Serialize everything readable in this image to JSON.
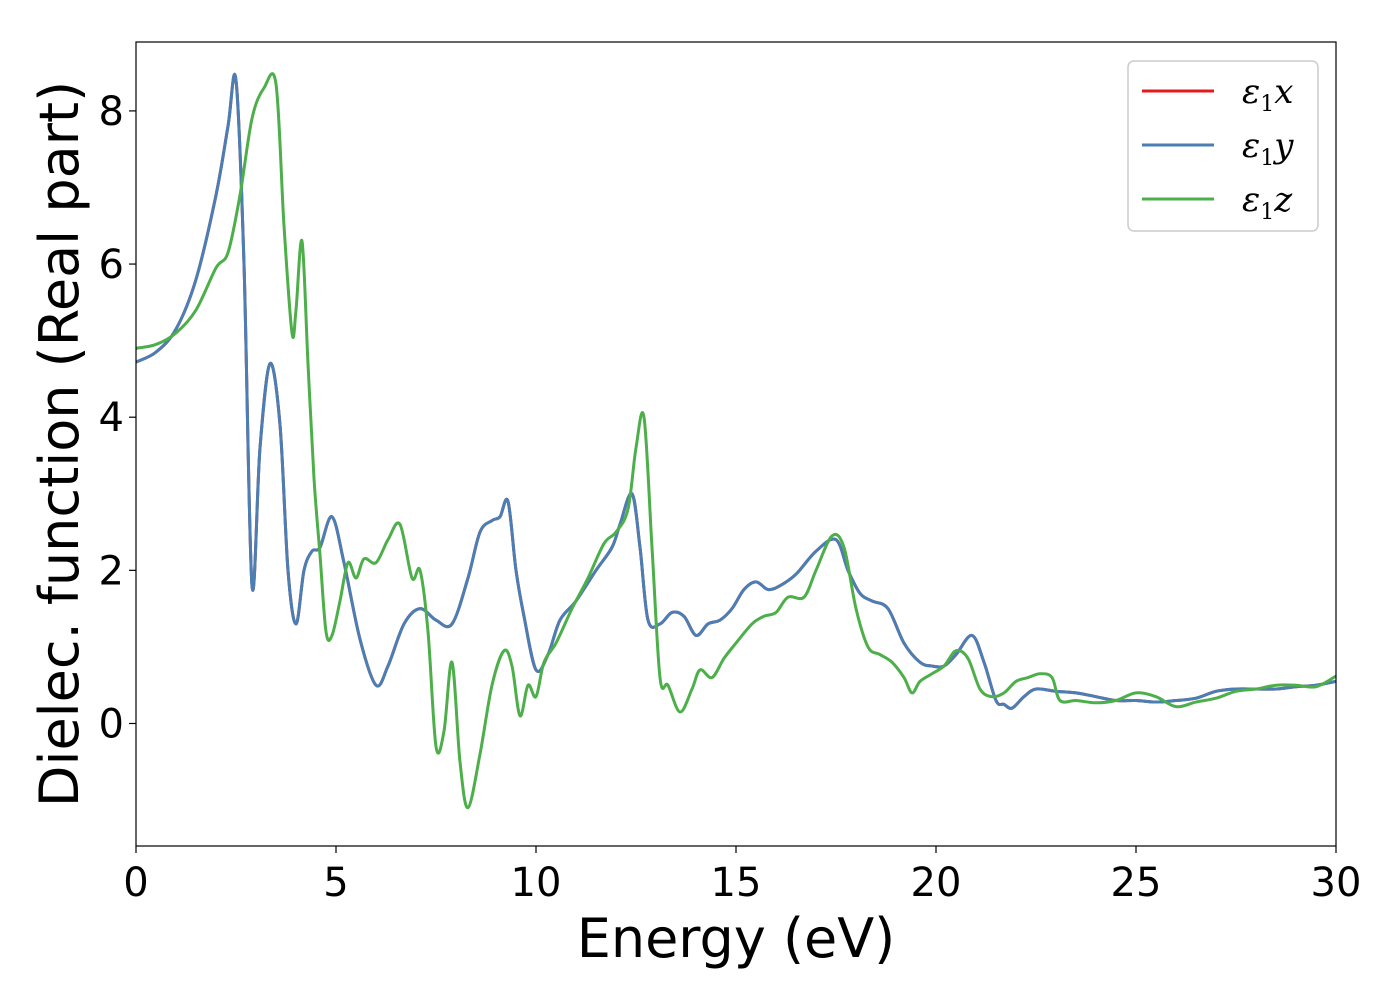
{
  "chart_data": {
    "type": "line",
    "xlabel": "Energy (eV)",
    "ylabel": "Dielec. function (Real part)",
    "xlim": [
      0,
      30
    ],
    "ylim": [
      -1.6,
      8.9
    ],
    "xticks": [
      0,
      5,
      10,
      15,
      20,
      25,
      30
    ],
    "yticks": [
      0,
      2,
      4,
      6,
      8
    ],
    "legend_position": "upper-right",
    "grid": false,
    "series": [
      {
        "name": "ε1x",
        "legend": {
          "base": "ε",
          "sub": "1",
          "suffix": "x"
        },
        "color": "#e41a1c",
        "x": [
          0,
          0.5,
          1,
          1.5,
          2,
          2.3,
          2.5,
          2.7,
          2.9,
          3.1,
          3.35,
          3.6,
          3.8,
          4.0,
          4.2,
          4.4,
          4.6,
          4.9,
          5.2,
          5.6,
          6.0,
          6.3,
          6.7,
          7.1,
          7.5,
          7.9,
          8.3,
          8.6,
          8.9,
          9.1,
          9.3,
          9.5,
          9.7,
          10.0,
          10.3,
          10.6,
          11.0,
          11.5,
          11.9,
          12.1,
          12.4,
          12.6,
          12.8,
          13.1,
          13.4,
          13.7,
          14.0,
          14.3,
          14.6,
          14.9,
          15.2,
          15.5,
          15.8,
          16.1,
          16.5,
          17.0,
          17.5,
          17.8,
          18.1,
          18.4,
          18.8,
          19.2,
          19.6,
          19.9,
          20.2,
          20.5,
          20.9,
          21.2,
          21.5,
          21.7,
          21.9,
          22.2,
          22.5,
          23.0,
          23.5,
          24.0,
          24.5,
          25.0,
          25.5,
          26.0,
          26.5,
          27.0,
          27.5,
          28.0,
          28.5,
          29.0,
          29.5,
          30.0
        ],
        "y": [
          4.72,
          4.85,
          5.15,
          5.8,
          6.9,
          7.8,
          8.4,
          6.0,
          1.8,
          3.6,
          4.7,
          3.9,
          2.0,
          1.3,
          2.0,
          2.25,
          2.3,
          2.7,
          2.1,
          1.1,
          0.5,
          0.75,
          1.3,
          1.5,
          1.35,
          1.3,
          1.9,
          2.5,
          2.65,
          2.7,
          2.9,
          2.0,
          1.4,
          0.7,
          0.9,
          1.35,
          1.6,
          2.0,
          2.3,
          2.6,
          3.0,
          2.3,
          1.35,
          1.3,
          1.45,
          1.4,
          1.15,
          1.3,
          1.35,
          1.5,
          1.75,
          1.85,
          1.75,
          1.8,
          1.95,
          2.25,
          2.4,
          2.0,
          1.7,
          1.6,
          1.5,
          1.05,
          0.8,
          0.75,
          0.75,
          0.9,
          1.15,
          0.8,
          0.3,
          0.25,
          0.2,
          0.35,
          0.45,
          0.42,
          0.4,
          0.35,
          0.3,
          0.3,
          0.28,
          0.3,
          0.33,
          0.42,
          0.45,
          0.45,
          0.45,
          0.48,
          0.5,
          0.55
        ]
      },
      {
        "name": "ε1y",
        "legend": {
          "base": "ε",
          "sub": "1",
          "suffix": "y"
        },
        "color": "#4a7fb5",
        "x": [
          0,
          0.5,
          1,
          1.5,
          2,
          2.3,
          2.5,
          2.7,
          2.9,
          3.1,
          3.35,
          3.6,
          3.8,
          4.0,
          4.2,
          4.4,
          4.6,
          4.9,
          5.2,
          5.6,
          6.0,
          6.3,
          6.7,
          7.1,
          7.5,
          7.9,
          8.3,
          8.6,
          8.9,
          9.1,
          9.3,
          9.5,
          9.7,
          10.0,
          10.3,
          10.6,
          11.0,
          11.5,
          11.9,
          12.1,
          12.4,
          12.6,
          12.8,
          13.1,
          13.4,
          13.7,
          14.0,
          14.3,
          14.6,
          14.9,
          15.2,
          15.5,
          15.8,
          16.1,
          16.5,
          17.0,
          17.5,
          17.8,
          18.1,
          18.4,
          18.8,
          19.2,
          19.6,
          19.9,
          20.2,
          20.5,
          20.9,
          21.2,
          21.5,
          21.7,
          21.9,
          22.2,
          22.5,
          23.0,
          23.5,
          24.0,
          24.5,
          25.0,
          25.5,
          26.0,
          26.5,
          27.0,
          27.5,
          28.0,
          28.5,
          29.0,
          29.5,
          30.0
        ],
        "y": [
          4.72,
          4.85,
          5.15,
          5.8,
          6.9,
          7.8,
          8.4,
          6.0,
          1.8,
          3.6,
          4.7,
          3.9,
          2.0,
          1.3,
          2.0,
          2.25,
          2.3,
          2.7,
          2.1,
          1.1,
          0.5,
          0.75,
          1.3,
          1.5,
          1.35,
          1.3,
          1.9,
          2.5,
          2.65,
          2.7,
          2.9,
          2.0,
          1.4,
          0.7,
          0.9,
          1.35,
          1.6,
          2.0,
          2.3,
          2.6,
          3.0,
          2.3,
          1.35,
          1.3,
          1.45,
          1.4,
          1.15,
          1.3,
          1.35,
          1.5,
          1.75,
          1.85,
          1.75,
          1.8,
          1.95,
          2.25,
          2.4,
          2.0,
          1.7,
          1.6,
          1.5,
          1.05,
          0.8,
          0.75,
          0.75,
          0.9,
          1.15,
          0.8,
          0.3,
          0.25,
          0.2,
          0.35,
          0.45,
          0.42,
          0.4,
          0.35,
          0.3,
          0.3,
          0.28,
          0.3,
          0.33,
          0.42,
          0.45,
          0.45,
          0.45,
          0.48,
          0.5,
          0.55
        ]
      },
      {
        "name": "ε1z",
        "legend": {
          "base": "ε",
          "sub": "1",
          "suffix": "z"
        },
        "color": "#4daf4a",
        "x": [
          0,
          0.5,
          1,
          1.5,
          2,
          2.3,
          2.6,
          2.9,
          3.2,
          3.5,
          3.7,
          3.9,
          4.0,
          4.15,
          4.3,
          4.45,
          4.6,
          4.75,
          4.9,
          5.1,
          5.3,
          5.5,
          5.7,
          6.0,
          6.3,
          6.6,
          6.9,
          7.1,
          7.3,
          7.5,
          7.7,
          7.9,
          8.1,
          8.3,
          8.6,
          8.9,
          9.2,
          9.4,
          9.6,
          9.8,
          10.0,
          10.2,
          10.5,
          10.9,
          11.3,
          11.7,
          12.0,
          12.3,
          12.5,
          12.7,
          12.9,
          13.1,
          13.3,
          13.6,
          13.9,
          14.1,
          14.4,
          14.7,
          15.0,
          15.4,
          15.7,
          16.0,
          16.3,
          16.7,
          17.0,
          17.4,
          17.7,
          18.0,
          18.3,
          18.6,
          18.9,
          19.2,
          19.4,
          19.6,
          19.9,
          20.2,
          20.5,
          20.8,
          21.1,
          21.4,
          21.7,
          22.0,
          22.3,
          22.6,
          22.9,
          23.1,
          23.5,
          24.0,
          24.5,
          25.0,
          25.5,
          26.0,
          26.5,
          27.0,
          27.5,
          28.0,
          28.5,
          29.0,
          29.5,
          30.0
        ],
        "y": [
          4.9,
          4.95,
          5.1,
          5.4,
          5.95,
          6.15,
          6.9,
          7.9,
          8.3,
          8.35,
          6.5,
          5.1,
          5.4,
          6.3,
          4.7,
          3.2,
          2.2,
          1.2,
          1.15,
          1.6,
          2.1,
          1.9,
          2.15,
          2.1,
          2.4,
          2.6,
          1.9,
          2.0,
          1.2,
          -0.3,
          -0.1,
          0.8,
          -0.5,
          -1.1,
          -0.4,
          0.5,
          0.95,
          0.75,
          0.1,
          0.5,
          0.35,
          0.8,
          1.05,
          1.5,
          1.9,
          2.35,
          2.5,
          2.8,
          3.6,
          4.0,
          2.3,
          0.6,
          0.5,
          0.15,
          0.45,
          0.7,
          0.6,
          0.85,
          1.05,
          1.3,
          1.4,
          1.45,
          1.65,
          1.65,
          2.0,
          2.45,
          2.3,
          1.5,
          1.0,
          0.9,
          0.8,
          0.6,
          0.4,
          0.55,
          0.65,
          0.75,
          0.95,
          0.85,
          0.45,
          0.35,
          0.4,
          0.55,
          0.6,
          0.65,
          0.6,
          0.3,
          0.3,
          0.27,
          0.3,
          0.4,
          0.35,
          0.22,
          0.28,
          0.33,
          0.42,
          0.45,
          0.5,
          0.5,
          0.48,
          0.62
        ]
      }
    ]
  }
}
